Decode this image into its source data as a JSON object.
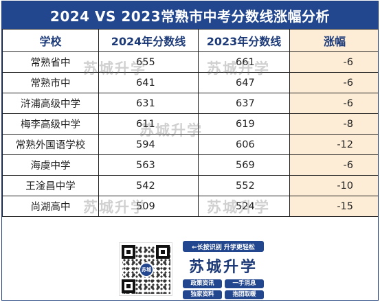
{
  "title": "2024 VS 2023常熟市中考分数线涨幅分析",
  "table": {
    "headers": [
      "学校",
      "2024年分数线",
      "2023年分数线",
      "涨幅"
    ],
    "rows": [
      {
        "school": "常熟省中",
        "y2024": "655",
        "y2023": "661",
        "rise": "-6"
      },
      {
        "school": "常熟市中",
        "y2024": "641",
        "y2023": "647",
        "rise": "-6"
      },
      {
        "school": "浒浦高级中学",
        "y2024": "631",
        "y2023": "637",
        "rise": "-6"
      },
      {
        "school": "梅李高级中学",
        "y2024": "611",
        "y2023": "619",
        "rise": "-8"
      },
      {
        "school": "常熟外国语学校",
        "y2024": "594",
        "y2023": "606",
        "rise": "-12"
      },
      {
        "school": "海虞中学",
        "y2024": "563",
        "y2023": "569",
        "rise": "-6"
      },
      {
        "school": "王淦昌中学",
        "y2024": "542",
        "y2023": "552",
        "rise": "-10"
      },
      {
        "school": "尚湖高中",
        "y2024": "509",
        "y2023": "524",
        "rise": "-15"
      }
    ]
  },
  "watermark": "苏城升学",
  "footer": {
    "qr_badge": "苏城",
    "tagline": "←长按识别 升学更轻松",
    "brand": "苏城升学",
    "pills": [
      "政策资讯",
      "一手消息",
      "独家资料",
      "抱团取暖"
    ]
  },
  "colors": {
    "header_blue": "#23478e",
    "rise_fill": "#fdedd6"
  }
}
